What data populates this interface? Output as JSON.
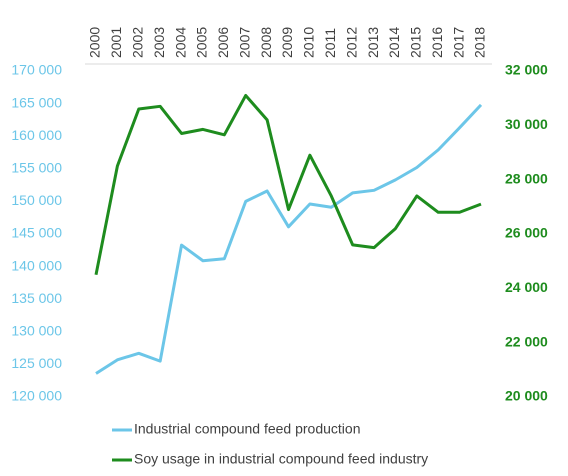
{
  "chart_data": {
    "type": "line",
    "categories": [
      "2000",
      "2001",
      "2002",
      "2003",
      "2004",
      "2005",
      "2006",
      "2007",
      "2008",
      "2009",
      "2010",
      "2011",
      "2012",
      "2013",
      "2014",
      "2015",
      "2016",
      "2017",
      "2018"
    ],
    "series": [
      {
        "name": "Industrial compound feed production",
        "color": "#6cc6e8",
        "axis": "y",
        "values": [
          123600,
          125700,
          126700,
          125500,
          143300,
          140900,
          141200,
          150000,
          151600,
          146100,
          149600,
          149100,
          151300,
          151700,
          153300,
          155200,
          157900,
          161300,
          164800
        ]
      },
      {
        "name": "Soy usage in industrial compound feed industry",
        "color": "#1e8c1e",
        "axis": "y2",
        "values": [
          24500,
          28500,
          30600,
          30700,
          29700,
          29850,
          29650,
          31100,
          30200,
          26900,
          28900,
          27400,
          25600,
          25500,
          26200,
          27400,
          26800,
          26800,
          27100
        ]
      }
    ],
    "ylim": [
      120000,
      170000
    ],
    "yticks": [
      {
        "value": 120000,
        "label": "120 000"
      },
      {
        "value": 125000,
        "label": "125 000"
      },
      {
        "value": 130000,
        "label": "130 000"
      },
      {
        "value": 135000,
        "label": "135 000"
      },
      {
        "value": 140000,
        "label": "140 000"
      },
      {
        "value": 145000,
        "label": "145 000"
      },
      {
        "value": 150000,
        "label": "150 000"
      },
      {
        "value": 155000,
        "label": "155 000"
      },
      {
        "value": 160000,
        "label": "160 000"
      },
      {
        "value": 165000,
        "label": "165 000"
      },
      {
        "value": 170000,
        "label": "170 000"
      }
    ],
    "y2lim": [
      20000,
      32000
    ],
    "y2ticks": [
      {
        "value": 20000,
        "label": "20 000"
      },
      {
        "value": 22000,
        "label": "22 000"
      },
      {
        "value": 24000,
        "label": "24 000"
      },
      {
        "value": 26000,
        "label": "26 000"
      },
      {
        "value": 28000,
        "label": "28 000"
      },
      {
        "value": 30000,
        "label": "30 000"
      },
      {
        "value": 32000,
        "label": "32 000"
      }
    ],
    "grid": false,
    "legend": "bottom"
  }
}
